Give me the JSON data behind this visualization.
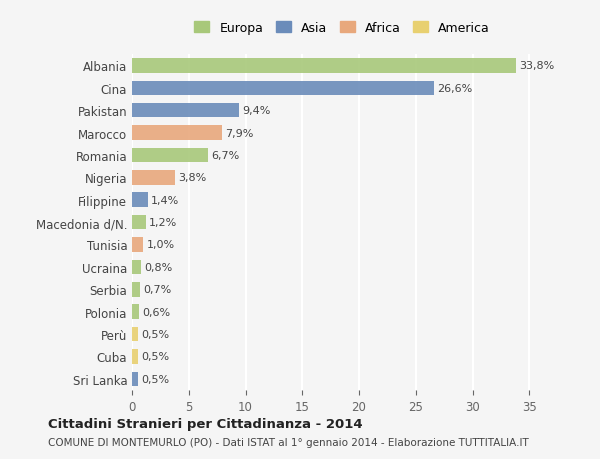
{
  "countries": [
    "Albania",
    "Cina",
    "Pakistan",
    "Marocco",
    "Romania",
    "Nigeria",
    "Filippine",
    "Macedonia d/N.",
    "Tunisia",
    "Ucraina",
    "Serbia",
    "Polonia",
    "Perù",
    "Cuba",
    "Sri Lanka"
  ],
  "values": [
    33.8,
    26.6,
    9.4,
    7.9,
    6.7,
    3.8,
    1.4,
    1.2,
    1.0,
    0.8,
    0.7,
    0.6,
    0.5,
    0.5,
    0.5
  ],
  "labels": [
    "33,8%",
    "26,6%",
    "9,4%",
    "7,9%",
    "6,7%",
    "3,8%",
    "1,4%",
    "1,2%",
    "1,0%",
    "0,8%",
    "0,7%",
    "0,6%",
    "0,5%",
    "0,5%",
    "0,5%"
  ],
  "continents": [
    "Europa",
    "Asia",
    "Asia",
    "Africa",
    "Europa",
    "Africa",
    "Asia",
    "Europa",
    "Africa",
    "Europa",
    "Europa",
    "Europa",
    "America",
    "America",
    "Asia"
  ],
  "colors": {
    "Europa": "#a8c87a",
    "Asia": "#6b8cba",
    "Africa": "#e8a87c",
    "America": "#e8d070"
  },
  "legend_order": [
    "Europa",
    "Asia",
    "Africa",
    "America"
  ],
  "bg_color": "#f5f5f5",
  "grid_color": "#ffffff",
  "title": "Cittadini Stranieri per Cittadinanza - 2014",
  "subtitle": "COMUNE DI MONTEMURLO (PO) - Dati ISTAT al 1° gennaio 2014 - Elaborazione TUTTITALIA.IT",
  "xlim": [
    0,
    37
  ],
  "xticks": [
    0,
    5,
    10,
    15,
    20,
    25,
    30,
    35
  ]
}
